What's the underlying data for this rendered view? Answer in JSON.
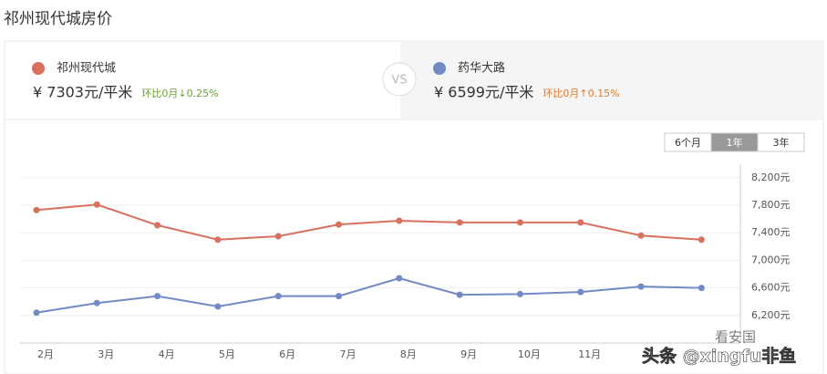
{
  "header": {
    "title": "祁州现代城房价"
  },
  "compare": {
    "vs": "VS",
    "items": [
      {
        "name": "祁州现代城",
        "price": "¥ 7303元/平米",
        "change": "环比0月↓0.25%",
        "color": "#d9705f",
        "change_color": "#6aa13a"
      },
      {
        "name": "药华大路",
        "price": "¥ 6599元/平米",
        "change": "环比0月↑0.15%",
        "color": "#7189c4",
        "change_color": "#e07b2c"
      }
    ]
  },
  "range_buttons": {
    "labels": [
      "6个月",
      "1年",
      "3年"
    ],
    "active": 1
  },
  "watermark": {
    "source": "看安国",
    "author": "头条 @xingfu非鱼"
  },
  "chart_data": {
    "type": "line",
    "categories": [
      "2月",
      "3月",
      "4月",
      "5月",
      "6月",
      "7月",
      "8月",
      "9月",
      "10月",
      "11月",
      null,
      null
    ],
    "series": [
      {
        "name": "祁州现代城",
        "color": "#d9705f",
        "values": [
          7730,
          7810,
          7510,
          7300,
          7350,
          7520,
          7575,
          7550,
          7550,
          7550,
          7360,
          7300
        ]
      },
      {
        "name": "药华大路",
        "color": "#7189c4",
        "values": [
          6240,
          6380,
          6480,
          6330,
          6480,
          6480,
          6740,
          6500,
          6510,
          6540,
          6620,
          6600
        ]
      }
    ],
    "ylim": [
      5800,
      8300
    ],
    "yticks": [
      {
        "value": 6200,
        "label": "6,200元"
      },
      {
        "value": 6600,
        "label": "6,600元"
      },
      {
        "value": 7000,
        "label": "7,000元"
      },
      {
        "value": 7400,
        "label": "7,400元"
      },
      {
        "value": 7800,
        "label": "7,800元"
      },
      {
        "value": 8200,
        "label": "8,200元"
      }
    ],
    "grid": true
  }
}
